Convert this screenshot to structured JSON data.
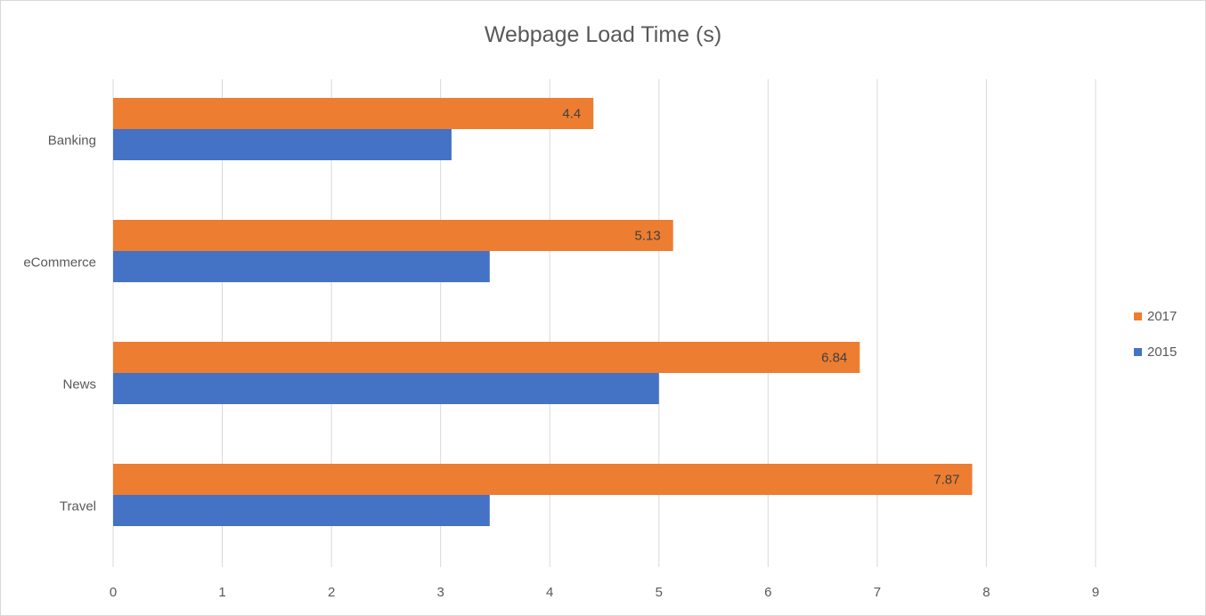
{
  "chart_data": {
    "type": "bar",
    "orientation": "horizontal",
    "title": "Webpage Load Time (s)",
    "categories": [
      "Banking",
      "eCommerce",
      "News",
      "Travel"
    ],
    "series": [
      {
        "name": "2017",
        "color": "#ED7D31",
        "values": [
          4.4,
          5.13,
          6.84,
          7.87
        ],
        "labels": [
          "4.4",
          "5.13",
          "6.84",
          "7.87"
        ]
      },
      {
        "name": "2015",
        "color": "#4472C4",
        "values": [
          3.1,
          3.45,
          5.0,
          3.45
        ]
      }
    ],
    "xlim": [
      0,
      9
    ],
    "xticks": [
      "0",
      "1",
      "2",
      "3",
      "4",
      "5",
      "6",
      "7",
      "8",
      "9"
    ],
    "grid": "vertical",
    "legend": "right"
  }
}
